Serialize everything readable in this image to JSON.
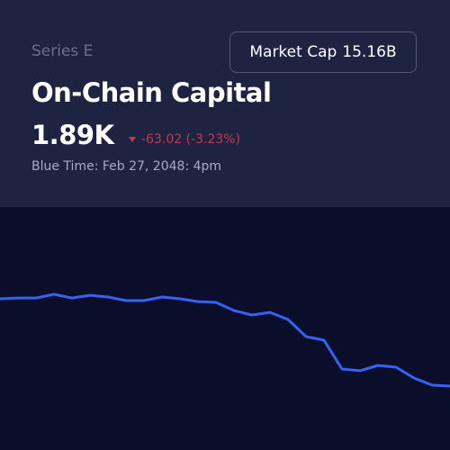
{
  "header": {
    "series_label": "Series E",
    "title": "On-Chain Capital",
    "price": "1.89K",
    "change": "-63.02 (-3.23%)",
    "time_label": "Blue Time: Feb 27, 2048: 4pm"
  },
  "button": {
    "label": "Market Cap",
    "value": "15.16B"
  },
  "chart_data": {
    "type": "line",
    "color": "#3462f2",
    "values": [
      1953.0,
      1953.6,
      1953.6,
      1956.3,
      1953.6,
      1955.6,
      1954.3,
      1951.7,
      1951.7,
      1954.3,
      1953.0,
      1951.0,
      1950.4,
      1944.4,
      1941.2,
      1943.1,
      1937.9,
      1925.4,
      1922.8,
      1901.8,
      1900.5,
      1904.4,
      1903.1,
      1895.2,
      1890.0,
      1889.3
    ]
  }
}
